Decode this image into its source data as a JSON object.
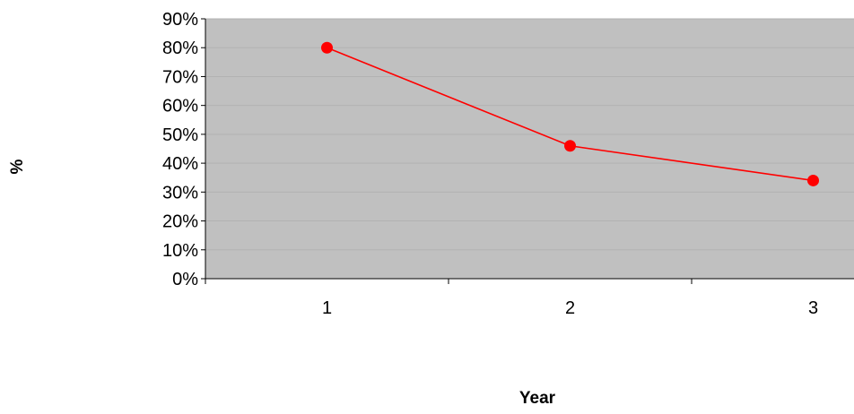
{
  "chart_data": {
    "type": "line",
    "xlabel": "Year",
    "ylabel": "%",
    "categories": [
      "1",
      "2",
      "3"
    ],
    "series": [
      {
        "values": [
          80,
          46,
          34
        ],
        "color": "#ff0000"
      }
    ],
    "ylim": [
      0,
      90
    ],
    "yticks": [
      "0%",
      "10%",
      "20%",
      "30%",
      "40%",
      "50%",
      "60%",
      "70%",
      "80%",
      "90%"
    ],
    "ytick_values": [
      0,
      10,
      20,
      30,
      40,
      50,
      60,
      70,
      80,
      90
    ],
    "grid": true,
    "plot_background": "#c0c0c0",
    "gridline_color": "#b2b2b2",
    "line_color": "#ff0000"
  }
}
